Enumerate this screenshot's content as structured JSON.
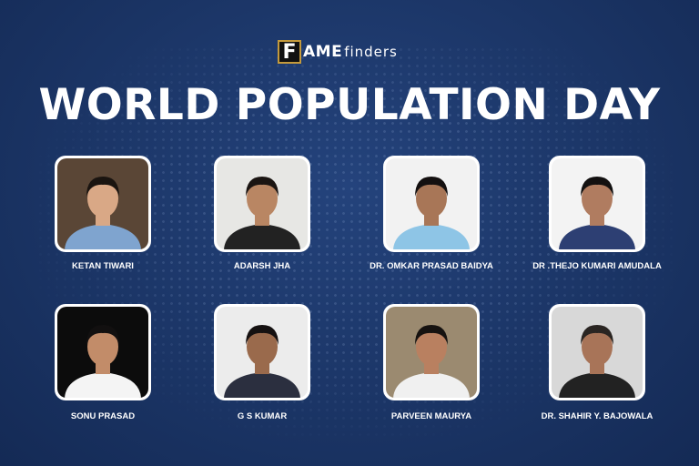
{
  "logo": {
    "box_letter": "F",
    "bold": "AME",
    "light": "finders"
  },
  "title": "WORLD POPULATION DAY",
  "people": [
    {
      "name": "KETAN TIWARI",
      "bg": "#5a4636",
      "shirt": "#7fa4cf",
      "skin": "#d9a886",
      "hair": "#1a1410"
    },
    {
      "name": "ADARSH JHA",
      "bg": "#e7e7e4",
      "shirt": "#222",
      "skin": "#b98663",
      "hair": "#1b1512"
    },
    {
      "name": "DR. OMKAR PRASAD BAIDYA",
      "bg": "#f2f2f2",
      "shirt": "#8ec5e6",
      "skin": "#a87657",
      "hair": "#141010"
    },
    {
      "name": "DR .THEJO KUMARI AMUDALA",
      "bg": "#f3f3f3",
      "shirt": "#2d3f73",
      "skin": "#b07c60",
      "hair": "#121010"
    },
    {
      "name": "SONU PRASAD",
      "bg": "#0c0c0c",
      "shirt": "#f4f4f4",
      "skin": "#c28c69",
      "hair": "#121010"
    },
    {
      "name": "G S KUMAR",
      "bg": "#ececec",
      "shirt": "#2b2f3f",
      "skin": "#9a6a4c",
      "hair": "#151111"
    },
    {
      "name": "PARVEEN MAURYA",
      "bg": "#9b8a70",
      "shirt": "#f0f0f0",
      "skin": "#b98060",
      "hair": "#161210"
    },
    {
      "name": "DR. SHAHIR Y. BAJOWALA",
      "bg": "#d8d8d8",
      "shirt": "#222",
      "skin": "#a87458",
      "hair": "#2a2522"
    }
  ]
}
